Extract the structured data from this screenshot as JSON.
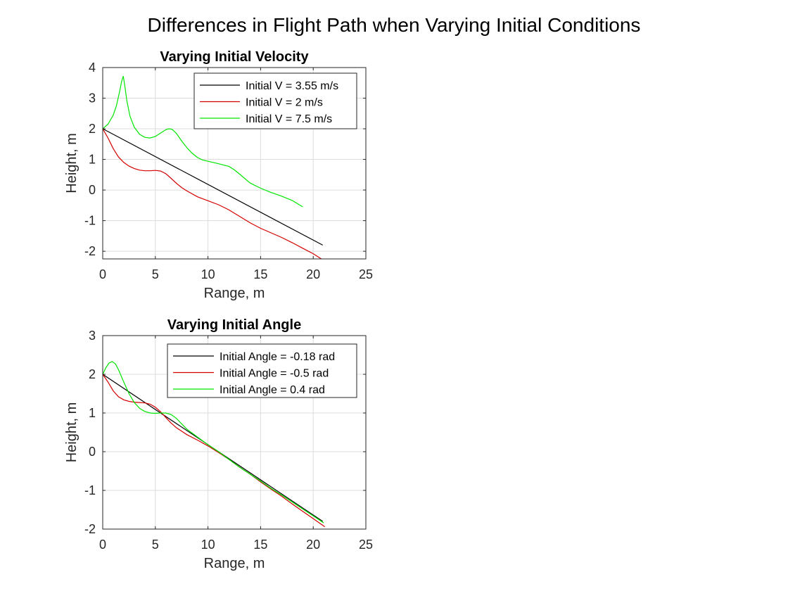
{
  "figure_title": "Differences in Flight Path when Varying Initial Conditions",
  "chart_data": [
    {
      "type": "line",
      "title": "Varying Initial Velocity",
      "xlabel": "Range, m",
      "ylabel": "Height, m",
      "xlim": [
        0,
        25
      ],
      "ylim": [
        -2.25,
        4
      ],
      "xticks": [
        0,
        5,
        10,
        15,
        20,
        25
      ],
      "yticks": [
        -2,
        -1,
        0,
        1,
        2,
        3,
        4
      ],
      "grid": true,
      "legend_position": "top-right",
      "series": [
        {
          "name": "Initial V = 3.55 m/s",
          "color": "#000000",
          "x": [
            0,
            20.9
          ],
          "y": [
            2,
            -1.8
          ]
        },
        {
          "name": "Initial V = 2 m/s",
          "color": "#d40000",
          "x": [
            0,
            0.5,
            1,
            1.5,
            2,
            2.5,
            3,
            3.5,
            4,
            4.5,
            5,
            5.5,
            6,
            6.5,
            7,
            7.5,
            8,
            9,
            10,
            11,
            12,
            13,
            14,
            15,
            16,
            17,
            18,
            19,
            20,
            21
          ],
          "y": [
            2,
            1.7,
            1.35,
            1.08,
            0.9,
            0.78,
            0.7,
            0.65,
            0.63,
            0.63,
            0.64,
            0.62,
            0.53,
            0.38,
            0.22,
            0.08,
            -0.03,
            -0.22,
            -0.35,
            -0.48,
            -0.65,
            -0.86,
            -1.07,
            -1.25,
            -1.4,
            -1.55,
            -1.72,
            -1.9,
            -2.08,
            -2.3
          ]
        },
        {
          "name": "Initial V = 7.5 m/s",
          "color": "#00e600",
          "x": [
            0,
            0.5,
            1,
            1.3,
            1.6,
            1.8,
            1.95,
            2.1,
            2.3,
            2.6,
            3,
            3.5,
            4,
            4.5,
            5,
            5.5,
            6,
            6.3,
            6.6,
            7,
            7.5,
            8,
            8.5,
            9,
            9.5,
            10,
            11,
            12,
            12.5,
            13,
            14,
            15,
            16,
            17,
            18,
            19
          ],
          "y": [
            2,
            2.15,
            2.45,
            2.75,
            3.2,
            3.55,
            3.72,
            3.4,
            2.9,
            2.4,
            2.05,
            1.82,
            1.72,
            1.7,
            1.75,
            1.86,
            1.97,
            2.0,
            1.98,
            1.85,
            1.6,
            1.38,
            1.2,
            1.06,
            0.98,
            0.94,
            0.86,
            0.77,
            0.66,
            0.52,
            0.23,
            0.06,
            -0.08,
            -0.2,
            -0.34,
            -0.55
          ]
        }
      ]
    },
    {
      "type": "line",
      "title": "Varying Initial Angle",
      "xlabel": "Range, m",
      "ylabel": "Height, m",
      "xlim": [
        0,
        25
      ],
      "ylim": [
        -2,
        3
      ],
      "xticks": [
        0,
        5,
        10,
        15,
        20,
        25
      ],
      "yticks": [
        -2,
        -1,
        0,
        1,
        2,
        3
      ],
      "grid": true,
      "legend_position": "top-right",
      "series": [
        {
          "name": "Initial Angle = -0.18 rad",
          "color": "#000000",
          "x": [
            0,
            20.9
          ],
          "y": [
            2,
            -1.8
          ]
        },
        {
          "name": "Initial Angle = -0.5 rad",
          "color": "#d40000",
          "x": [
            0,
            0.5,
            1,
            1.5,
            2,
            2.5,
            3,
            3.5,
            4,
            4.5,
            5,
            5.5,
            6,
            6.5,
            7,
            8,
            9,
            10,
            11,
            12,
            13,
            14,
            15,
            16,
            17,
            18,
            19,
            20,
            21.1
          ],
          "y": [
            2,
            1.8,
            1.57,
            1.42,
            1.34,
            1.3,
            1.28,
            1.27,
            1.26,
            1.23,
            1.15,
            1.03,
            0.88,
            0.74,
            0.62,
            0.44,
            0.3,
            0.15,
            -0.02,
            -0.2,
            -0.4,
            -0.58,
            -0.78,
            -0.97,
            -1.15,
            -1.35,
            -1.54,
            -1.73,
            -1.94
          ]
        },
        {
          "name": "Initial Angle = 0.4 rad",
          "color": "#00e600",
          "x": [
            0,
            0.3,
            0.6,
            0.9,
            1.2,
            1.5,
            2,
            2.5,
            3,
            3.5,
            4,
            4.5,
            5,
            5.5,
            6,
            6.5,
            7,
            7.5,
            8,
            9,
            10,
            11,
            12,
            13,
            14,
            15,
            16,
            17,
            18,
            19,
            20,
            21
          ],
          "y": [
            2,
            2.17,
            2.29,
            2.33,
            2.27,
            2.12,
            1.8,
            1.5,
            1.27,
            1.12,
            1.04,
            1.0,
            0.99,
            1.0,
            1.0,
            0.96,
            0.86,
            0.72,
            0.58,
            0.38,
            0.18,
            0.0,
            -0.2,
            -0.4,
            -0.58,
            -0.76,
            -0.95,
            -1.12,
            -1.3,
            -1.48,
            -1.66,
            -1.84
          ]
        }
      ]
    }
  ]
}
